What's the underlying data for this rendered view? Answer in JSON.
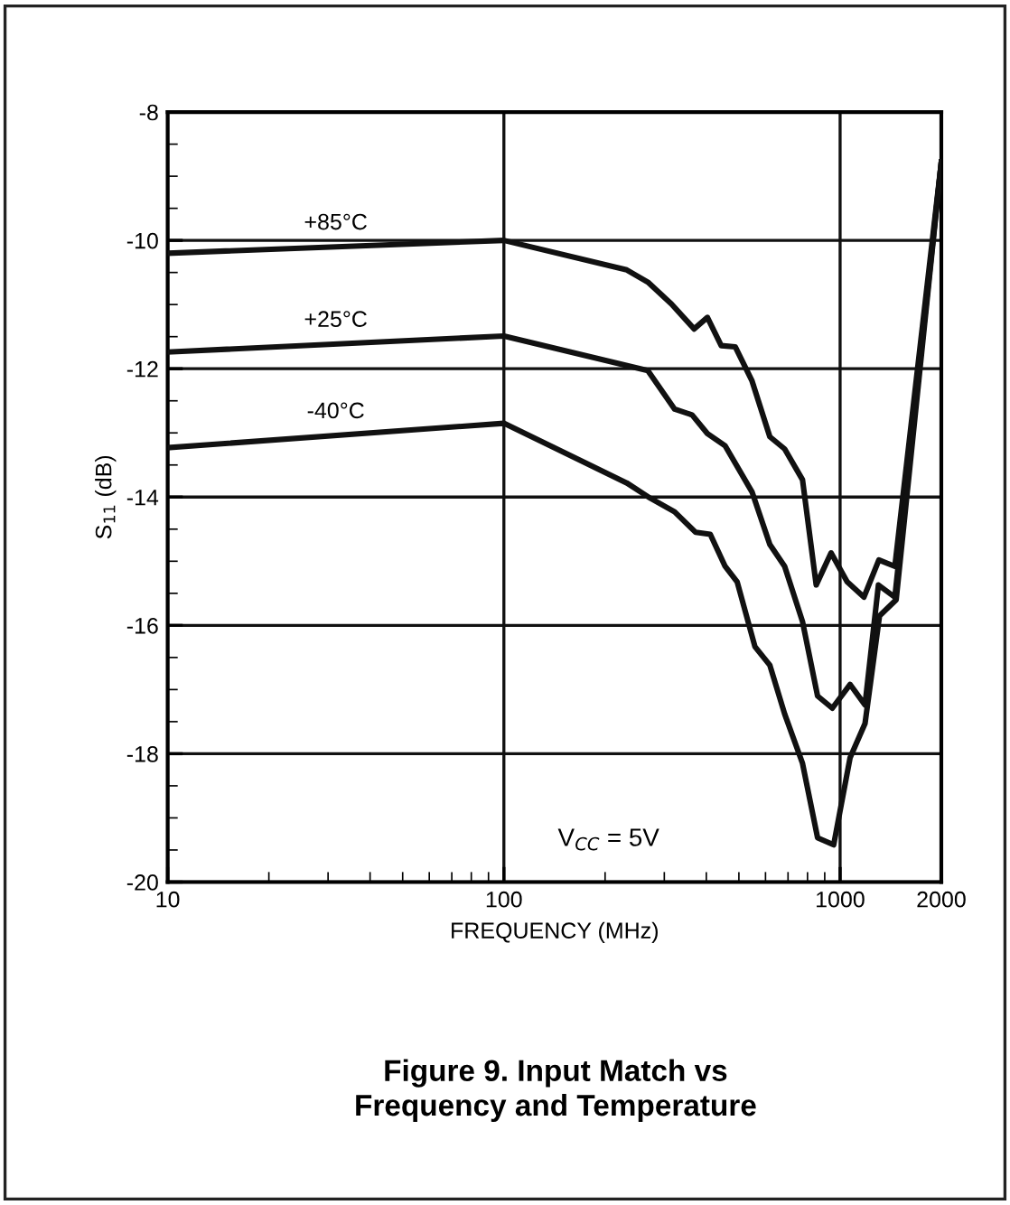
{
  "chart_data": {
    "type": "line",
    "title": "Figure 9. Input Match vs\nFrequency and Temperature",
    "xlabel": "FREQUENCY (MHz)",
    "ylabel": "S$_{11}$ (dB)",
    "log": "x",
    "xlim": [
      10,
      2000
    ],
    "xticks": [
      10,
      100,
      1000,
      2000
    ],
    "ylim": [
      -20,
      -8
    ],
    "yticks": [
      -20,
      -18,
      -16,
      -14,
      -12,
      -10,
      -8
    ],
    "grid": true,
    "legend": false,
    "marker": "none",
    "line_style": "solid",
    "annotations": [
      "V$_{CC}$ = 5V"
    ],
    "series": [
      {
        "name": "+85°C",
        "color": "#111111",
        "x": [
          10,
          100,
          232,
          268,
          315,
          368,
          403,
          443,
          488,
          547,
          618,
          684,
          773,
          849,
          940,
          1049,
          1177,
          1304,
          1455,
          2000
        ],
        "values": [
          -10.2,
          -10.0,
          -10.46,
          -10.65,
          -10.99,
          -11.38,
          -11.2,
          -11.64,
          -11.66,
          -12.19,
          -13.06,
          -13.25,
          -13.73,
          -15.37,
          -14.87,
          -15.32,
          -15.56,
          -14.98,
          -15.08,
          -8.78
        ]
      },
      {
        "name": "+25°C",
        "color": "#111111",
        "x": [
          10,
          100,
          268,
          322,
          363,
          403,
          455,
          547,
          618,
          684,
          773,
          857,
          948,
          1071,
          1186,
          1300,
          1455,
          2000
        ],
        "values": [
          -11.74,
          -11.49,
          -12.03,
          -12.63,
          -12.72,
          -13.01,
          -13.2,
          -13.92,
          -14.74,
          -15.08,
          -15.94,
          -17.1,
          -17.29,
          -16.92,
          -17.24,
          -15.37,
          -15.56,
          -8.78
        ]
      },
      {
        "name": "-40°C",
        "color": "#111111",
        "x": [
          10,
          100,
          232,
          273,
          322,
          372,
          411,
          455,
          494,
          558,
          618,
          684,
          773,
          857,
          957,
          1071,
          1186,
          1310,
          1468,
          2000
        ],
        "values": [
          -13.23,
          -12.85,
          -13.78,
          -14.02,
          -14.23,
          -14.55,
          -14.58,
          -15.08,
          -15.32,
          -16.33,
          -16.62,
          -17.38,
          -18.15,
          -19.31,
          -19.42,
          -18.06,
          -17.53,
          -15.85,
          -15.6,
          -8.78
        ]
      }
    ]
  }
}
